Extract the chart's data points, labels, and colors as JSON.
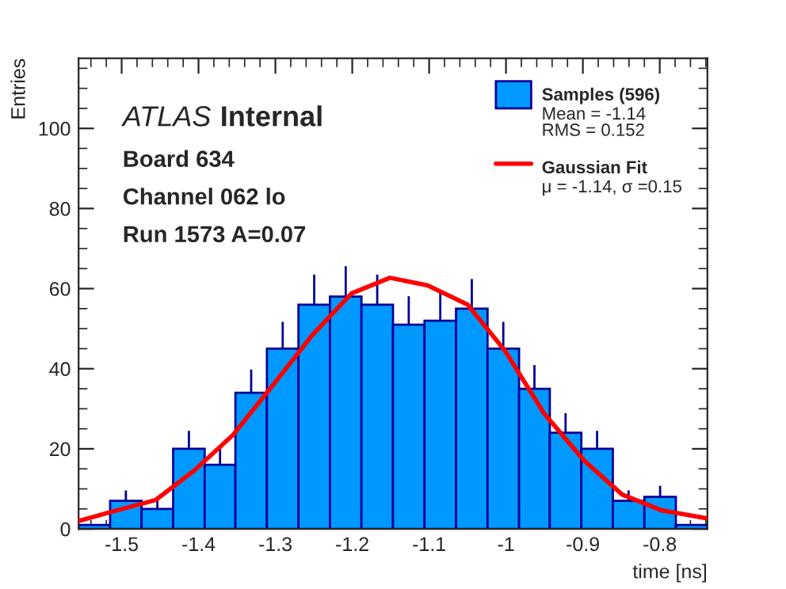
{
  "chart_data": {
    "type": "histogram",
    "xlabel": "time [ns]",
    "ylabel": "Entries",
    "bins": [
      -1.556,
      -1.515,
      -1.474,
      -1.433,
      -1.392,
      -1.352,
      -1.311,
      -1.27,
      -1.229,
      -1.188,
      -1.147,
      -1.106,
      -1.065,
      -1.024,
      -0.983,
      -0.943,
      -0.902,
      -0.861,
      -0.82,
      -0.779,
      -0.738
    ],
    "series": [
      {
        "name": "Samples (596)",
        "color": "#0099ff",
        "values": [
          1,
          7,
          5,
          20,
          16,
          34,
          45,
          56,
          58,
          56,
          51,
          52,
          55,
          45,
          35,
          24,
          20,
          7,
          8,
          1
        ],
        "errors": [
          null,
          2.6,
          2.2,
          4.5,
          4,
          5.8,
          6.7,
          7.5,
          7.6,
          7.5,
          7.1,
          7.2,
          7.4,
          6.7,
          5.9,
          4.9,
          4.5,
          2.6,
          2.8,
          null
        ]
      },
      {
        "name": "Gaussian Fit",
        "type": "line",
        "color": "#ff0000",
        "x": [
          -1.556,
          -1.507,
          -1.456,
          -1.406,
          -1.355,
          -1.304,
          -1.252,
          -1.201,
          -1.151,
          -1.102,
          -1.05,
          -1.001,
          -0.95,
          -0.898,
          -0.849,
          -0.797,
          -0.74
        ],
        "values": [
          2,
          4.6,
          7.2,
          14.5,
          23.5,
          35.7,
          48.4,
          58.8,
          62.7,
          60.8,
          56,
          44.4,
          28.7,
          17,
          8.6,
          4.6,
          2.7
        ]
      }
    ],
    "xlim": [
      -1.556,
      -0.738
    ],
    "ylim": [
      0,
      117.5
    ],
    "xticks": [
      -1.5,
      -1.4,
      -1.3,
      -1.2,
      -1.1,
      -1,
      -0.9,
      -0.8
    ],
    "yticks": [
      0,
      20,
      40,
      60,
      80,
      100
    ],
    "legend": "top right",
    "annotations": [
      "ATLAS",
      "Internal",
      "Board 634",
      "Channel 062 lo",
      "Run 1573 A=0.07",
      "Mean = -1.14\nRMS = 0.152",
      "μ = -1.14, σ =0.15"
    ]
  }
}
